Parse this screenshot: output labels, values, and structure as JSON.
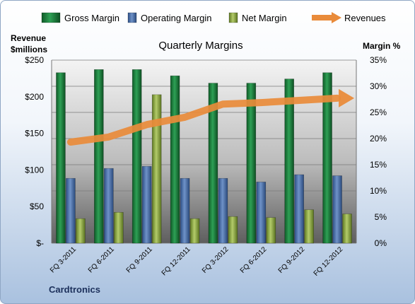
{
  "chart_data": {
    "type": "bar",
    "title": "Quarterly Margins",
    "footer": "Cardtronics",
    "categories": [
      "FQ 3-2011",
      "FQ 6-2011",
      "FQ 9-2011",
      "FQ 12-2011",
      "FQ 3-2012",
      "FQ 6-2012",
      "FQ 9-2012",
      "FQ 12-2012"
    ],
    "left_axis": {
      "label_line1": "Revenue",
      "label_line2": "$millions",
      "range": [
        0,
        250
      ],
      "ticks": [
        "$-",
        "$50",
        "$100",
        "$150",
        "$200",
        "$250"
      ]
    },
    "right_axis": {
      "label": "Margin %",
      "range": [
        0,
        35
      ],
      "ticks": [
        "0%",
        "5%",
        "10%",
        "15%",
        "20%",
        "25%",
        "30%",
        "35%"
      ]
    },
    "grid": true,
    "legend_position": "top",
    "series": [
      {
        "name": "Gross Margin",
        "axis": "right",
        "kind": "bar",
        "color": "#1e7a3c",
        "values": [
          32.6,
          33.2,
          33.2,
          32.0,
          30.6,
          30.6,
          31.4,
          32.6
        ]
      },
      {
        "name": "Operating Margin",
        "axis": "right",
        "kind": "bar",
        "color": "#4a6fa5",
        "values": [
          12.4,
          14.3,
          14.7,
          12.4,
          12.4,
          11.7,
          13.1,
          12.9
        ]
      },
      {
        "name": "Net Margin",
        "axis": "right",
        "kind": "bar",
        "color": "#8aa63e",
        "values": [
          4.7,
          5.9,
          28.4,
          4.7,
          5.1,
          4.9,
          6.4,
          5.6
        ]
      },
      {
        "name": "Revenues",
        "axis": "left",
        "kind": "line",
        "color": "#e98b3a",
        "values": [
          138,
          145,
          162,
          172,
          190,
          192,
          195,
          198
        ]
      }
    ]
  }
}
